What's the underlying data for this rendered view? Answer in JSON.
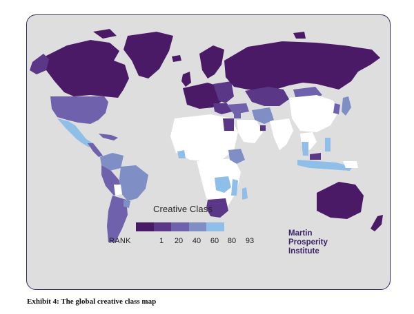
{
  "map": {
    "legend_title": "Creative Class",
    "rank_label": "RANK",
    "rank_ticks": [
      "1",
      "20",
      "40",
      "60",
      "80",
      "93"
    ],
    "legend_colors": [
      "#4b1a66",
      "#5a3787",
      "#6f61ab",
      "#7f8fc6",
      "#8fbfe8"
    ],
    "no_data_color": "#ffffff",
    "ocean_color": "#dedede",
    "frame_color": "#2c2a6b"
  },
  "brand": {
    "line1": "Martin",
    "line2": "Prosperity",
    "line3": "Institute"
  },
  "caption": "Exhibit 4: The global creative class map"
}
